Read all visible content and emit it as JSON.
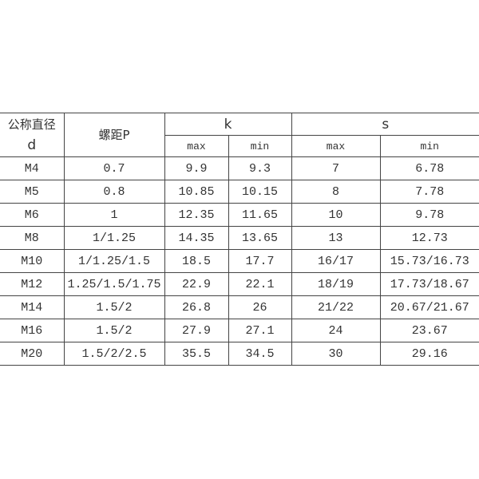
{
  "header": {
    "d_label_line1": "公称直径",
    "d_label_line2": "d",
    "pitch_label": "螺距P",
    "k_label": "k",
    "s_label": "s",
    "k_max": "max",
    "k_min": "min",
    "s_max": "max",
    "s_min": "min"
  },
  "rows": [
    {
      "d": "M4",
      "p": "0.7",
      "kmax": "9.9",
      "kmin": "9.3",
      "smax": "7",
      "smin": "6.78"
    },
    {
      "d": "M5",
      "p": "0.8",
      "kmax": "10.85",
      "kmin": "10.15",
      "smax": "8",
      "smin": "7.78"
    },
    {
      "d": "M6",
      "p": "1",
      "kmax": "12.35",
      "kmin": "11.65",
      "smax": "10",
      "smin": "9.78"
    },
    {
      "d": "M8",
      "p": "1/1.25",
      "kmax": "14.35",
      "kmin": "13.65",
      "smax": "13",
      "smin": "12.73"
    },
    {
      "d": "M10",
      "p": "1/1.25/1.5",
      "kmax": "18.5",
      "kmin": "17.7",
      "smax": "16/17",
      "smin": "15.73/16.73"
    },
    {
      "d": "M12",
      "p": "1.25/1.5/1.75",
      "kmax": "22.9",
      "kmin": "22.1",
      "smax": "18/19",
      "smin": "17.73/18.67"
    },
    {
      "d": "M14",
      "p": "1.5/2",
      "kmax": "26.8",
      "kmin": "26",
      "smax": "21/22",
      "smin": "20.67/21.67"
    },
    {
      "d": "M16",
      "p": "1.5/2",
      "kmax": "27.9",
      "kmin": "27.1",
      "smax": "24",
      "smin": "23.67"
    },
    {
      "d": "M20",
      "p": "1.5/2/2.5",
      "kmax": "35.5",
      "kmin": "34.5",
      "smax": "30",
      "smin": "29.16"
    }
  ]
}
